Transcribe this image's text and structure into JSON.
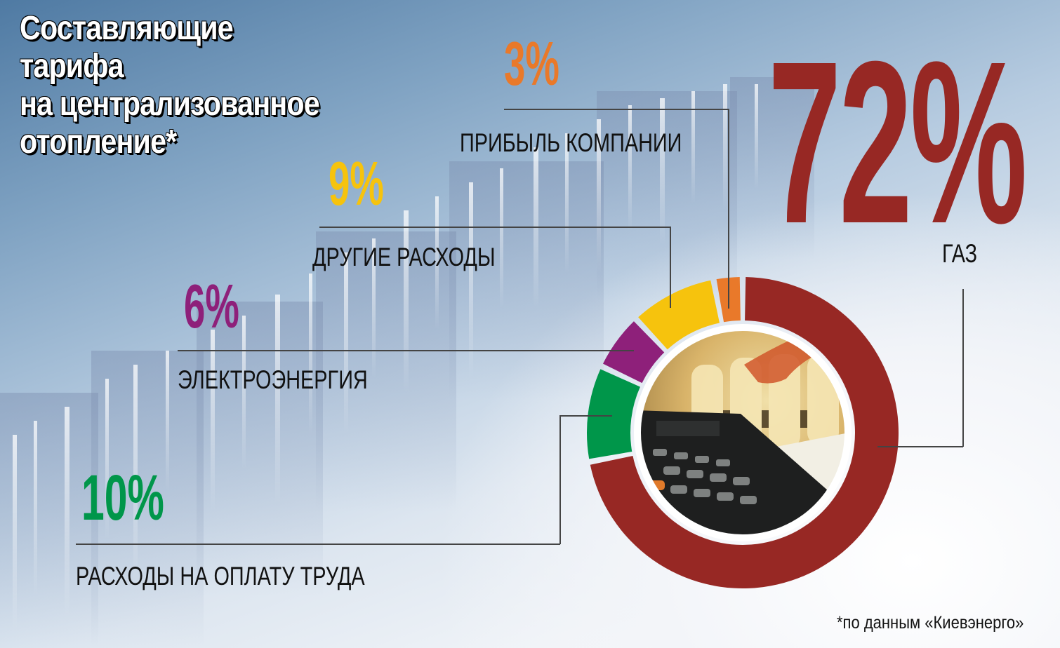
{
  "title": {
    "lines": [
      "Составляющие",
      "тарифа",
      "на централизованное",
      "отопление*"
    ]
  },
  "segments": [
    {
      "key": "gas",
      "percent_label": "72%",
      "label": "ГАЗ",
      "color": "#972824"
    },
    {
      "key": "labor",
      "percent_label": "10%",
      "label": "РАСХОДЫ НА ОПЛАТУ ТРУДА",
      "color": "#00964a"
    },
    {
      "key": "electricity",
      "percent_label": "6%",
      "label": "ЭЛЕКТРОЭНЕРГИЯ",
      "color": "#8e207a"
    },
    {
      "key": "other",
      "percent_label": "9%",
      "label": "ДРУГИЕ РАСХОДЫ",
      "color": "#f6c30d"
    },
    {
      "key": "profit",
      "percent_label": "3%",
      "label": "ПРИБЫЛЬ КОМПАНИИ",
      "color": "#e9792a"
    }
  ],
  "footnote": "*по данным «Киевэнерго»",
  "center_image": "calculator-and-radiator-photo",
  "chart_data": {
    "type": "pie",
    "variant": "donut",
    "title": "Составляющие тарифа на централизованное отопление*",
    "categories": [
      "Газ",
      "Расходы на оплату труда",
      "Электроэнергия",
      "Другие расходы",
      "Прибыль компании"
    ],
    "values": [
      72,
      10,
      6,
      9,
      3
    ],
    "unit": "%",
    "colors": [
      "#972824",
      "#00964a",
      "#8e207a",
      "#f6c30d",
      "#e9792a"
    ],
    "start_angle_deg": 0,
    "direction": "clockwise",
    "legend_position": "callout labels with leader lines",
    "source_note": "*по данным «Киевэнерго»"
  }
}
